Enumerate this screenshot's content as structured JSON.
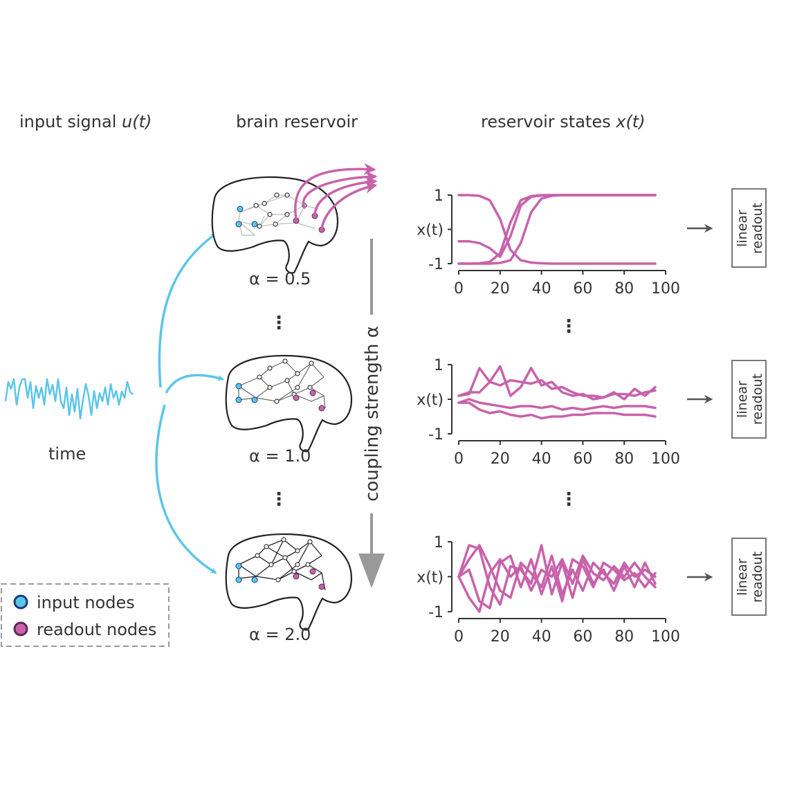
{
  "headers": {
    "input": "input signal",
    "input_var": "u(t)",
    "reservoir": "brain reservoir",
    "states": "reservoir states",
    "states_var": "x(t)"
  },
  "time_label": "time",
  "coupling_label": "coupling strength α",
  "legend": {
    "input": "input nodes",
    "readout": "readout nodes"
  },
  "ellipsis": "⋮",
  "colors": {
    "input": "#5bc5ea",
    "readout": "#c862ab",
    "axis": "#333333",
    "arrow_gray": "#999999"
  },
  "rows": [
    {
      "alpha_label": "α  = 0.5",
      "ylabel": "x(t)",
      "yticks": [
        "1",
        "",
        "-1"
      ],
      "xticks": [
        "0",
        "20",
        "40",
        "60",
        "80",
        "100"
      ],
      "readout": [
        "linear",
        "readout"
      ]
    },
    {
      "alpha_label": "α  = 1.0",
      "ylabel": "x(t)",
      "yticks": [
        "1",
        "",
        "-1"
      ],
      "xticks": [
        "0",
        "20",
        "40",
        "60",
        "80",
        "100"
      ],
      "readout": [
        "linear",
        "readout"
      ]
    },
    {
      "alpha_label": "α  = 2.0",
      "ylabel": "x(t)",
      "yticks": [
        "1",
        "",
        "-1"
      ],
      "xticks": [
        "0",
        "20",
        "40",
        "60",
        "80",
        "100"
      ],
      "readout": [
        "linear",
        "readout"
      ]
    }
  ],
  "chart_data": [
    {
      "type": "line",
      "ylabel": "x(t)",
      "xlim": [
        0,
        100
      ],
      "ylim": [
        -1,
        1
      ],
      "x": [
        0,
        5,
        10,
        15,
        20,
        25,
        30,
        35,
        40,
        45,
        50,
        55,
        60,
        65,
        70,
        75,
        80,
        85,
        90,
        95
      ],
      "series": [
        {
          "values": [
            1.0,
            1.0,
            0.98,
            0.85,
            0.3,
            -0.6,
            -0.9,
            -0.97,
            -0.99,
            -1.0,
            -1.0,
            -1.0,
            -1.0,
            -1.0,
            -1.0,
            -1.0,
            -1.0,
            -1.0,
            -1.0,
            -1.0
          ]
        },
        {
          "values": [
            -0.35,
            -0.35,
            -0.4,
            -0.55,
            -0.8,
            -0.2,
            0.7,
            0.95,
            0.99,
            1.0,
            1.0,
            1.0,
            1.0,
            1.0,
            1.0,
            1.0,
            1.0,
            1.0,
            1.0,
            1.0
          ]
        },
        {
          "values": [
            -1.0,
            -1.0,
            -0.99,
            -0.95,
            -0.7,
            0.2,
            0.85,
            0.97,
            1.0,
            1.0,
            1.0,
            1.0,
            1.0,
            1.0,
            1.0,
            1.0,
            1.0,
            1.0,
            1.0,
            1.0
          ]
        },
        {
          "values": [
            -1.0,
            -1.0,
            -1.0,
            -1.0,
            -0.98,
            -0.9,
            -0.4,
            0.5,
            0.9,
            0.98,
            1.0,
            1.0,
            1.0,
            1.0,
            1.0,
            1.0,
            1.0,
            1.0,
            1.0,
            1.0
          ]
        }
      ]
    },
    {
      "type": "line",
      "ylabel": "x(t)",
      "xlim": [
        0,
        100
      ],
      "ylim": [
        -1,
        1
      ],
      "x": [
        0,
        5,
        10,
        15,
        20,
        25,
        30,
        35,
        40,
        45,
        50,
        55,
        60,
        65,
        70,
        75,
        80,
        85,
        90,
        95
      ],
      "series": [
        {
          "values": [
            0.1,
            0.15,
            0.9,
            0.5,
            0.95,
            0.1,
            0.35,
            0.9,
            0.4,
            0.5,
            0.2,
            0.1,
            0.15,
            0.0,
            0.05,
            0.2,
            0.0,
            0.3,
            0.1,
            0.35
          ]
        },
        {
          "values": [
            0.1,
            0.2,
            0.2,
            0.5,
            0.4,
            0.55,
            0.5,
            0.45,
            0.55,
            0.3,
            0.35,
            0.2,
            0.1,
            0.1,
            0.05,
            0.15,
            0.15,
            0.1,
            0.2,
            0.25
          ]
        },
        {
          "values": [
            -0.1,
            0.0,
            -0.1,
            -0.15,
            -0.2,
            -0.25,
            -0.2,
            -0.2,
            -0.25,
            -0.2,
            -0.3,
            -0.25,
            -0.3,
            -0.25,
            -0.2,
            -0.25,
            -0.2,
            -0.2,
            -0.2,
            -0.25
          ]
        },
        {
          "values": [
            -0.1,
            -0.1,
            -0.3,
            -0.4,
            -0.35,
            -0.45,
            -0.5,
            -0.45,
            -0.55,
            -0.5,
            -0.5,
            -0.45,
            -0.45,
            -0.4,
            -0.4,
            -0.4,
            -0.45,
            -0.45,
            -0.45,
            -0.5
          ]
        }
      ]
    },
    {
      "type": "line",
      "ylabel": "x(t)",
      "xlim": [
        0,
        100
      ],
      "ylim": [
        -1,
        1
      ],
      "x": [
        0,
        5,
        10,
        15,
        20,
        25,
        30,
        35,
        40,
        45,
        50,
        55,
        60,
        65,
        70,
        75,
        80,
        85,
        90,
        95
      ],
      "series": [
        {
          "values": [
            0.0,
            0.9,
            0.8,
            -0.3,
            -0.8,
            0.3,
            0.2,
            -0.2,
            0.9,
            -0.5,
            0.4,
            -0.6,
            0.5,
            -0.2,
            0.2,
            -0.4,
            0.3,
            -0.3,
            0.4,
            -0.2
          ]
        },
        {
          "values": [
            0.0,
            0.5,
            0.9,
            0.3,
            -0.4,
            -0.6,
            0.4,
            0.1,
            -0.3,
            0.6,
            -0.5,
            0.2,
            -0.4,
            0.4,
            0.1,
            -0.2,
            0.4,
            0.0,
            0.2,
            0.0
          ]
        },
        {
          "values": [
            0.0,
            0.2,
            -0.7,
            -0.9,
            0.4,
            0.6,
            -0.3,
            0.5,
            -0.5,
            0.3,
            -0.7,
            0.5,
            0.3,
            -0.3,
            0.4,
            0.2,
            -0.1,
            0.1,
            -0.3,
            0.1
          ]
        },
        {
          "values": [
            0.0,
            -0.6,
            -1.0,
            0.1,
            0.5,
            0.0,
            0.3,
            -0.4,
            0.2,
            0.0,
            0.5,
            -0.2,
            0.6,
            0.1,
            -0.1,
            0.3,
            0.0,
            0.4,
            0.0,
            -0.3
          ]
        }
      ]
    }
  ]
}
